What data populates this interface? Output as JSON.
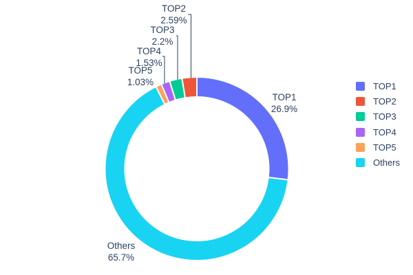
{
  "chart_data": {
    "type": "pie",
    "title": "",
    "hole": 0.78,
    "rotation_start": "top",
    "legend_position": "right",
    "background_color": "#ffffff",
    "text_color": "#2a3f5f",
    "separator_color": "#ffffff",
    "slices": [
      {
        "label": "TOP1",
        "value": 26.9,
        "pct_text": "26.9%",
        "color": "#636EFA"
      },
      {
        "label": "TOP2",
        "value": 2.59,
        "pct_text": "2.59%",
        "color": "#EF553B"
      },
      {
        "label": "TOP3",
        "value": 2.2,
        "pct_text": "2.2%",
        "color": "#00CC96"
      },
      {
        "label": "TOP4",
        "value": 1.53,
        "pct_text": "1.53%",
        "color": "#AB63FA"
      },
      {
        "label": "TOP5",
        "value": 1.03,
        "pct_text": "1.03%",
        "color": "#FFA15A"
      },
      {
        "label": "Others",
        "value": 65.7,
        "pct_text": "65.7%",
        "color": "#19D3F3"
      }
    ]
  },
  "legend": {
    "items": [
      "TOP1",
      "TOP2",
      "TOP3",
      "TOP4",
      "TOP5",
      "Others"
    ]
  }
}
